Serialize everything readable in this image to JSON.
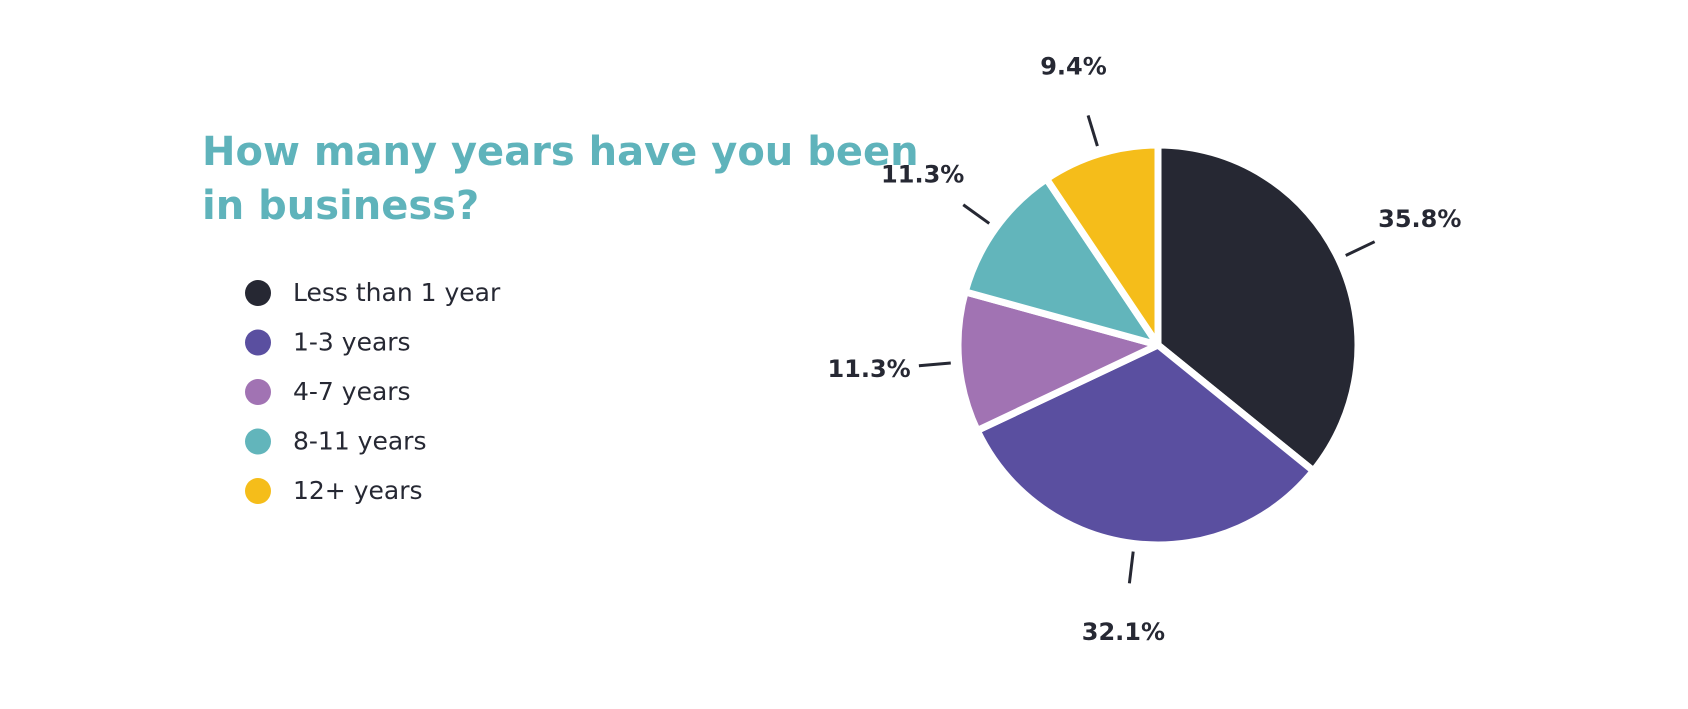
{
  "chart_data": {
    "type": "pie",
    "title": "How many years have you been in business?",
    "categories": [
      "Less than 1 year",
      "1-3 years",
      "4-7 years",
      "8-11 years",
      "12+ years"
    ],
    "values": [
      35.8,
      32.1,
      11.3,
      11.3,
      9.4
    ],
    "value_labels": [
      "35.8%",
      "32.1%",
      "11.3%",
      "11.3%",
      "9.4%"
    ],
    "colors": [
      "#262833",
      "#5a4fa0",
      "#a173b3",
      "#62b5bb",
      "#f5bd1a"
    ]
  }
}
